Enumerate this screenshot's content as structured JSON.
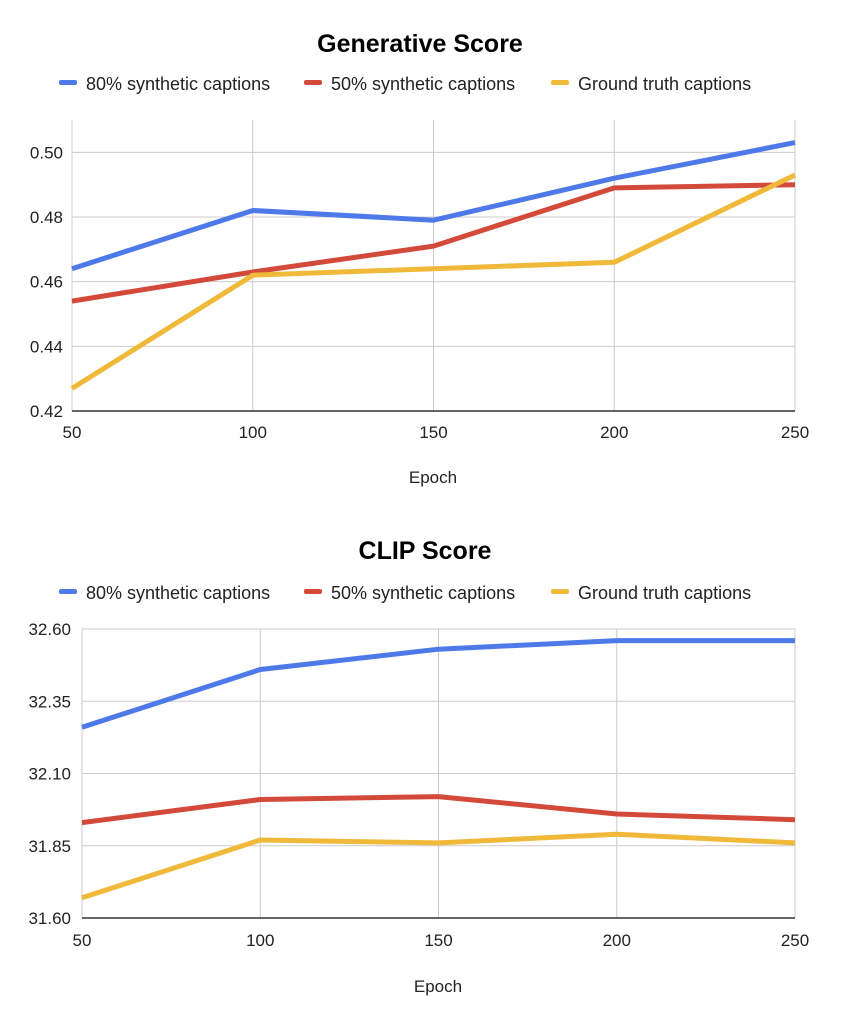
{
  "chart_data": [
    {
      "type": "line",
      "title": "Generative Score",
      "xlabel": "Epoch",
      "ylabel": "",
      "x": [
        50,
        100,
        150,
        200,
        250
      ],
      "x_tick_labels": [
        "50",
        "100",
        "150",
        "200",
        "250"
      ],
      "ylim": [
        0.42,
        0.51
      ],
      "y_ticks": [
        0.42,
        0.44,
        0.46,
        0.48,
        0.5
      ],
      "y_tick_labels": [
        "0.42",
        "0.44",
        "0.46",
        "0.48",
        "0.50"
      ],
      "grid": true,
      "legend_position": "top",
      "series": [
        {
          "name": "80% synthetic captions",
          "color": "#4e79e8",
          "values": [
            0.464,
            0.482,
            0.479,
            0.492,
            0.503
          ]
        },
        {
          "name": "50% synthetic captions",
          "color": "#d44a3a",
          "values": [
            0.454,
            0.463,
            0.471,
            0.489,
            0.49
          ]
        },
        {
          "name": "Ground truth captions",
          "color": "#f0b93a",
          "values": [
            0.427,
            0.462,
            0.464,
            0.466,
            0.493
          ]
        }
      ]
    },
    {
      "type": "line",
      "title": "CLIP Score",
      "xlabel": "Epoch",
      "ylabel": "",
      "x": [
        50,
        100,
        150,
        200,
        250
      ],
      "x_tick_labels": [
        "50",
        "100",
        "150",
        "200",
        "250"
      ],
      "ylim": [
        31.6,
        32.6
      ],
      "y_ticks": [
        31.6,
        31.85,
        32.1,
        32.35,
        32.6
      ],
      "y_tick_labels": [
        "31.60",
        "31.85",
        "32.10",
        "32.35",
        "32.60"
      ],
      "grid": true,
      "legend_position": "top",
      "series": [
        {
          "name": "80% synthetic captions",
          "color": "#4e79e8",
          "values": [
            32.26,
            32.46,
            32.53,
            32.56,
            32.56
          ]
        },
        {
          "name": "50% synthetic captions",
          "color": "#d44a3a",
          "values": [
            31.93,
            32.01,
            32.02,
            31.96,
            31.94
          ]
        },
        {
          "name": "Ground truth captions",
          "color": "#f0b93a",
          "values": [
            31.67,
            31.87,
            31.86,
            31.89,
            31.86
          ]
        }
      ]
    }
  ]
}
